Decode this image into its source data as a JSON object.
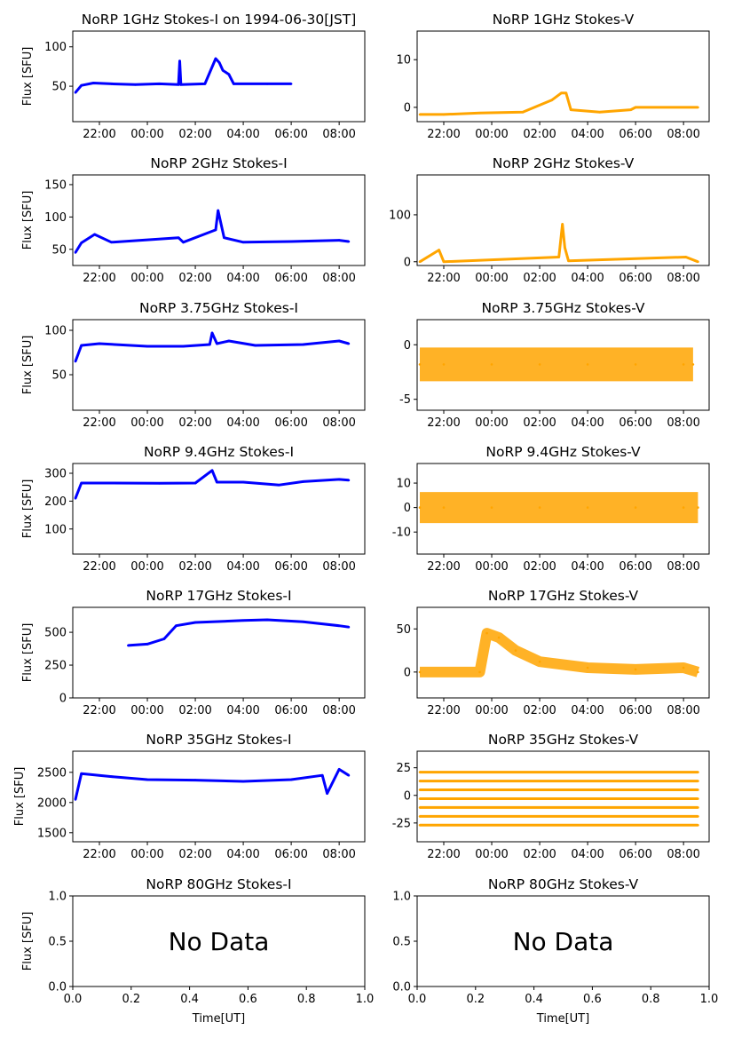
{
  "chart_data": [
    {
      "type": "scatter",
      "title": "NoRP 1GHz Stokes-I on 1994-06-30[JST]",
      "xlabel": "",
      "ylabel": "Flux [SFU]",
      "x_ticks": [
        "22:00",
        "00:00",
        "02:00",
        "04:00",
        "06:00",
        "08:00"
      ],
      "y_ticks": [
        50,
        100
      ],
      "ylim": [
        5,
        120
      ],
      "color": "#0000ff",
      "series": [
        {
          "values": [
            [
              21.0,
              42
            ],
            [
              21.25,
              51
            ],
            [
              21.75,
              54
            ],
            [
              22.5,
              53
            ],
            [
              23.5,
              52
            ],
            [
              0.5,
              53
            ],
            [
              1.3,
              52
            ],
            [
              1.35,
              82
            ],
            [
              1.4,
              52
            ],
            [
              2.4,
              53
            ],
            [
              2.85,
              85
            ],
            [
              3.0,
              80
            ],
            [
              3.15,
              70
            ],
            [
              3.4,
              65
            ],
            [
              3.6,
              53
            ],
            [
              5.0,
              53
            ],
            [
              6.0,
              53
            ]
          ]
        }
      ]
    },
    {
      "type": "scatter",
      "title": "NoRP 1GHz Stokes-V",
      "xlabel": "",
      "ylabel": "",
      "x_ticks": [
        "22:00",
        "00:00",
        "02:00",
        "04:00",
        "06:00",
        "08:00"
      ],
      "y_ticks": [
        0,
        10
      ],
      "ylim": [
        -3,
        16
      ],
      "color": "#ffa500",
      "series": [
        {
          "values": [
            [
              21.0,
              -1.5
            ],
            [
              22.0,
              -1.5
            ],
            [
              23.5,
              -1.2
            ],
            [
              1.3,
              -1.0
            ],
            [
              2.5,
              1.5
            ],
            [
              2.9,
              3
            ],
            [
              3.1,
              3
            ],
            [
              3.3,
              -0.5
            ],
            [
              4.5,
              -1.0
            ],
            [
              5.8,
              -0.5
            ],
            [
              6.0,
              0
            ],
            [
              8.6,
              0
            ]
          ]
        }
      ]
    },
    {
      "type": "scatter",
      "title": "NoRP 2GHz Stokes-I",
      "xlabel": "",
      "ylabel": "Flux [SFU]",
      "x_ticks": [
        "22:00",
        "00:00",
        "02:00",
        "04:00",
        "06:00",
        "08:00"
      ],
      "y_ticks": [
        50,
        100,
        150
      ],
      "ylim": [
        25,
        165
      ],
      "color": "#0000ff",
      "series": [
        {
          "values": [
            [
              21.0,
              45
            ],
            [
              21.25,
              60
            ],
            [
              21.8,
              73
            ],
            [
              22.5,
              61
            ],
            [
              1.3,
              68
            ],
            [
              1.5,
              61
            ],
            [
              2.85,
              80
            ],
            [
              2.95,
              110
            ],
            [
              3.2,
              68
            ],
            [
              4.0,
              61
            ],
            [
              6.0,
              62
            ],
            [
              8.0,
              64
            ],
            [
              8.4,
              62
            ]
          ]
        }
      ]
    },
    {
      "type": "scatter",
      "title": "NoRP 2GHz Stokes-V",
      "xlabel": "",
      "ylabel": "",
      "x_ticks": [
        "22:00",
        "00:00",
        "02:00",
        "04:00",
        "06:00",
        "08:00"
      ],
      "y_ticks": [
        0,
        100
      ],
      "ylim": [
        -8,
        185
      ],
      "color": "#ffa500",
      "series": [
        {
          "values": [
            [
              21.0,
              0
            ],
            [
              21.8,
              25
            ],
            [
              22.0,
              0
            ],
            [
              2.8,
              10
            ],
            [
              2.95,
              80
            ],
            [
              3.05,
              30
            ],
            [
              3.2,
              2
            ],
            [
              8.1,
              10
            ],
            [
              8.6,
              0
            ]
          ]
        }
      ]
    },
    {
      "type": "scatter",
      "title": "NoRP 3.75GHz Stokes-I",
      "xlabel": "",
      "ylabel": "Flux [SFU]",
      "x_ticks": [
        "22:00",
        "00:00",
        "02:00",
        "04:00",
        "06:00",
        "08:00"
      ],
      "y_ticks": [
        50,
        100
      ],
      "ylim": [
        10,
        112
      ],
      "color": "#0000ff",
      "series": [
        {
          "values": [
            [
              21.0,
              65
            ],
            [
              21.25,
              83
            ],
            [
              22.0,
              85
            ],
            [
              0.0,
              82
            ],
            [
              1.5,
              82
            ],
            [
              2.6,
              84
            ],
            [
              2.7,
              97
            ],
            [
              2.9,
              85
            ],
            [
              3.4,
              88
            ],
            [
              4.5,
              83
            ],
            [
              6.5,
              84
            ],
            [
              8.0,
              88
            ],
            [
              8.4,
              85
            ]
          ]
        }
      ]
    },
    {
      "type": "scatter",
      "title": "NoRP 3.75GHz Stokes-V",
      "xlabel": "",
      "ylabel": "",
      "x_ticks": [
        "22:00",
        "00:00",
        "02:00",
        "04:00",
        "06:00",
        "08:00"
      ],
      "y_ticks": [
        -5,
        0
      ],
      "ylim": [
        -6,
        2.3
      ],
      "color": "#ffa500",
      "series": [
        {
          "values": [
            [
              21.0,
              -1.8
            ],
            [
              22.0,
              -1.8
            ],
            [
              0.0,
              -1.8
            ],
            [
              2.0,
              -1.8
            ],
            [
              4.0,
              -1.8
            ],
            [
              6.0,
              -1.8
            ],
            [
              8.0,
              -1.8
            ],
            [
              8.4,
              -1.8
            ]
          ]
        }
      ]
    },
    {
      "type": "scatter",
      "title": "NoRP 9.4GHz Stokes-I",
      "xlabel": "",
      "ylabel": "Flux [SFU]",
      "x_ticks": [
        "22:00",
        "00:00",
        "02:00",
        "04:00",
        "06:00",
        "08:00"
      ],
      "y_ticks": [
        100,
        200,
        300
      ],
      "ylim": [
        10,
        335
      ],
      "color": "#0000ff",
      "series": [
        {
          "values": [
            [
              21.0,
              210
            ],
            [
              21.25,
              265
            ],
            [
              22.5,
              265
            ],
            [
              0.5,
              264
            ],
            [
              2.0,
              265
            ],
            [
              2.7,
              310
            ],
            [
              2.9,
              268
            ],
            [
              4.0,
              268
            ],
            [
              5.5,
              258
            ],
            [
              6.5,
              270
            ],
            [
              8.0,
              278
            ],
            [
              8.4,
              275
            ]
          ]
        }
      ]
    },
    {
      "type": "scatter",
      "title": "NoRP 9.4GHz Stokes-V",
      "xlabel": "",
      "ylabel": "",
      "x_ticks": [
        "22:00",
        "00:00",
        "02:00",
        "04:00",
        "06:00",
        "08:00"
      ],
      "y_ticks": [
        -10,
        0,
        10
      ],
      "ylim": [
        -19,
        18
      ],
      "color": "#ffa500",
      "series": [
        {
          "values": [
            [
              21.0,
              0
            ],
            [
              22.0,
              0
            ],
            [
              0.0,
              0
            ],
            [
              2.0,
              0
            ],
            [
              4.0,
              0
            ],
            [
              6.0,
              0
            ],
            [
              8.0,
              0
            ],
            [
              8.6,
              0
            ]
          ]
        }
      ]
    },
    {
      "type": "scatter",
      "title": "NoRP 17GHz Stokes-I",
      "xlabel": "",
      "ylabel": "Flux [SFU]",
      "x_ticks": [
        "22:00",
        "00:00",
        "02:00",
        "04:00",
        "06:00",
        "08:00"
      ],
      "y_ticks": [
        0,
        250,
        500
      ],
      "ylim": [
        0,
        690
      ],
      "color": "#0000ff",
      "series": [
        {
          "values": [
            [
              23.2,
              400
            ],
            [
              0.0,
              410
            ],
            [
              0.7,
              450
            ],
            [
              1.2,
              550
            ],
            [
              2.0,
              575
            ],
            [
              4.0,
              590
            ],
            [
              5.0,
              595
            ],
            [
              6.5,
              580
            ],
            [
              8.0,
              550
            ],
            [
              8.4,
              540
            ]
          ]
        }
      ]
    },
    {
      "type": "scatter",
      "title": "NoRP 17GHz Stokes-V",
      "xlabel": "",
      "ylabel": "",
      "x_ticks": [
        "22:00",
        "00:00",
        "02:00",
        "04:00",
        "06:00",
        "08:00"
      ],
      "y_ticks": [
        0,
        50
      ],
      "ylim": [
        -30,
        75
      ],
      "color": "#ffa500",
      "series": [
        {
          "values": [
            [
              21.0,
              0
            ],
            [
              23.5,
              0
            ],
            [
              23.8,
              45
            ],
            [
              0.3,
              40
            ],
            [
              1.0,
              25
            ],
            [
              2.0,
              12
            ],
            [
              4.0,
              5
            ],
            [
              6.0,
              3
            ],
            [
              8.0,
              5
            ],
            [
              8.6,
              0
            ]
          ]
        }
      ]
    },
    {
      "type": "scatter",
      "title": "NoRP 35GHz Stokes-I",
      "xlabel": "",
      "ylabel": "Flux [SFU]",
      "x_ticks": [
        "22:00",
        "00:00",
        "02:00",
        "04:00",
        "06:00",
        "08:00"
      ],
      "y_ticks": [
        1500,
        2000,
        2500
      ],
      "ylim": [
        1350,
        2850
      ],
      "color": "#0000ff",
      "series": [
        {
          "values": [
            [
              21.0,
              2050
            ],
            [
              21.25,
              2480
            ],
            [
              22.5,
              2430
            ],
            [
              0.0,
              2380
            ],
            [
              2.0,
              2370
            ],
            [
              4.0,
              2350
            ],
            [
              6.0,
              2380
            ],
            [
              7.3,
              2450
            ],
            [
              7.5,
              2150
            ],
            [
              8.0,
              2550
            ],
            [
              8.4,
              2450
            ]
          ]
        }
      ]
    },
    {
      "type": "scatter",
      "title": "NoRP 35GHz Stokes-V",
      "xlabel": "",
      "ylabel": "",
      "x_ticks": [
        "22:00",
        "00:00",
        "02:00",
        "04:00",
        "06:00",
        "08:00"
      ],
      "y_ticks": [
        -25,
        0,
        25
      ],
      "ylim": [
        -42,
        40
      ],
      "color": "#ffa500",
      "series": [
        {
          "values": [
            [
              21.0,
              21
            ],
            [
              8.6,
              21
            ]
          ]
        },
        {
          "values": [
            [
              21.0,
              13
            ],
            [
              8.6,
              13
            ]
          ]
        },
        {
          "values": [
            [
              21.0,
              5
            ],
            [
              8.6,
              5
            ]
          ]
        },
        {
          "values": [
            [
              21.0,
              -3
            ],
            [
              8.6,
              -3
            ]
          ]
        },
        {
          "values": [
            [
              21.0,
              -11
            ],
            [
              8.6,
              -11
            ]
          ]
        },
        {
          "values": [
            [
              21.0,
              -19
            ],
            [
              8.6,
              -19
            ]
          ]
        },
        {
          "values": [
            [
              21.0,
              -27
            ],
            [
              8.6,
              -27
            ]
          ]
        }
      ]
    },
    {
      "type": "scatter",
      "title": "NoRP 80GHz Stokes-I",
      "xlabel": "Time[UT]",
      "ylabel": "Flux [SFU]",
      "x_ticks": [
        "0.0",
        "0.2",
        "0.4",
        "0.6",
        "0.8",
        "1.0"
      ],
      "y_ticks": [
        "0.0",
        "0.5",
        "1.0"
      ],
      "xlim": [
        0,
        1
      ],
      "ylim": [
        0,
        1
      ],
      "annotation": "No Data",
      "series": []
    },
    {
      "type": "scatter",
      "title": "NoRP 80GHz Stokes-V",
      "xlabel": "Time[UT]",
      "ylabel": "",
      "x_ticks": [
        "0.0",
        "0.2",
        "0.4",
        "0.6",
        "0.8",
        "1.0"
      ],
      "y_ticks": [
        "0.0",
        "0.5",
        "1.0"
      ],
      "xlim": [
        0,
        1
      ],
      "ylim": [
        0,
        1
      ],
      "annotation": "No Data",
      "series": []
    }
  ]
}
